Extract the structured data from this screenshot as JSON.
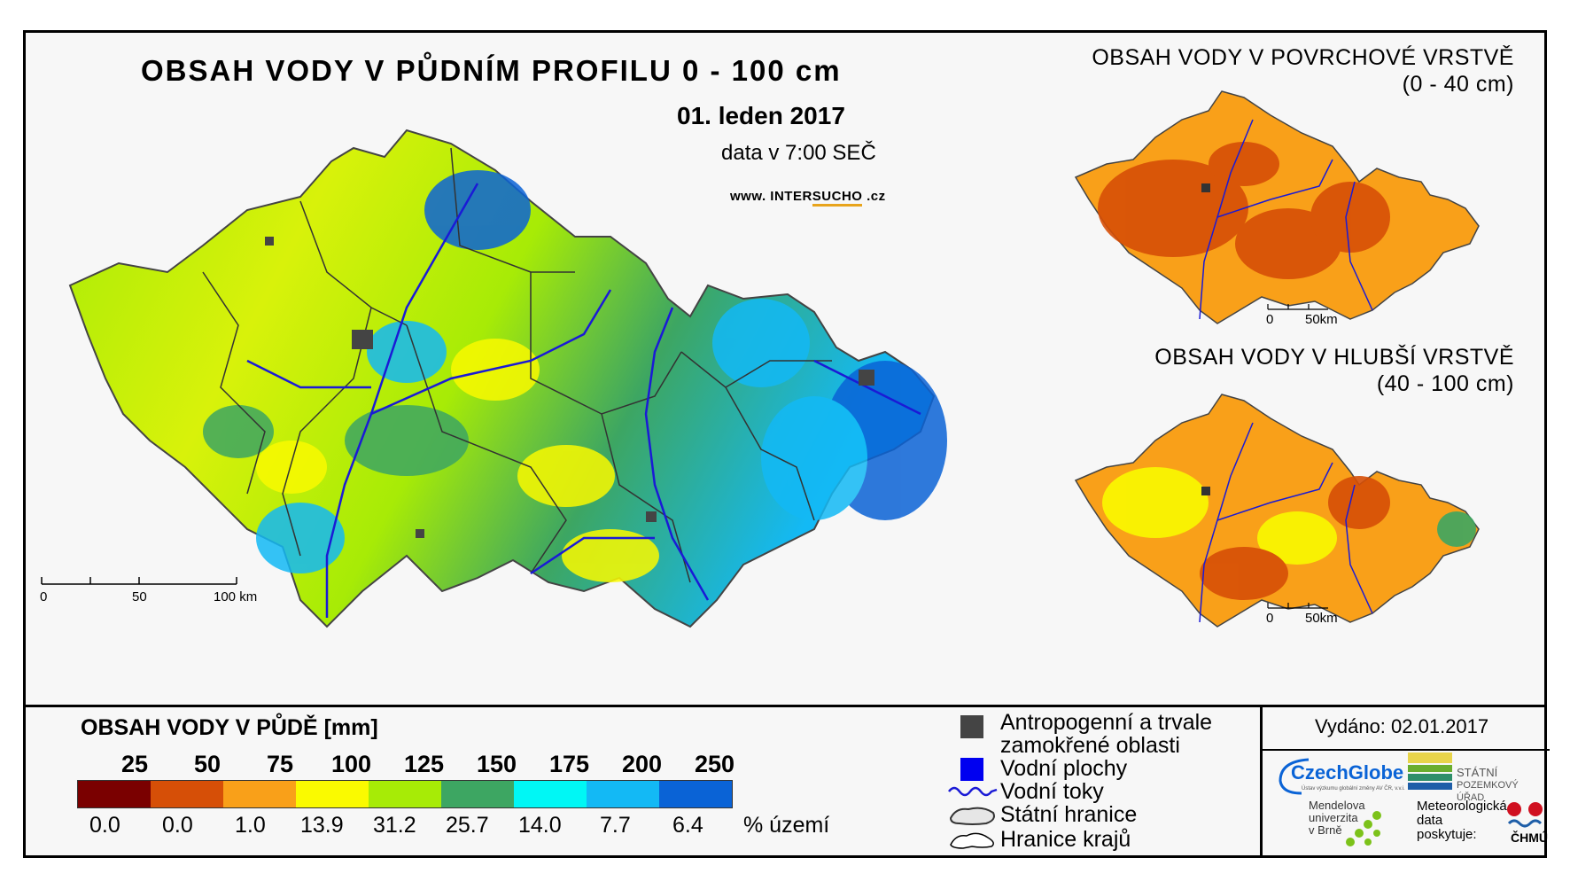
{
  "main": {
    "title": "OBSAH VODY V PŮDNÍM PROFILU 0 - 100 cm",
    "date": "01. leden 2017",
    "data_time": "data v 7:00 SEČ",
    "web_prefix": "www. INTER",
    "web_highlight": "SUCHO",
    "web_suffix": " .cz",
    "scale": [
      "0",
      "50",
      "100 km"
    ]
  },
  "inset_top": {
    "title": "OBSAH VODY V POVRCHOVÉ VRSTVĚ",
    "range": "(0 - 40 cm)",
    "scale": [
      "0",
      "50km"
    ]
  },
  "inset_bottom": {
    "title": "OBSAH VODY V HLUBŠÍ VRSTVĚ",
    "range": "(40 - 100 cm)",
    "scale": [
      "0",
      "50km"
    ]
  },
  "legend": {
    "title": "OBSAH VODY V PŮDĚ [mm]",
    "thresholds": [
      "25",
      "50",
      "75",
      "100",
      "125",
      "150",
      "175",
      "200",
      "250"
    ],
    "colors": [
      "#7a0000",
      "#d64f07",
      "#f9a019",
      "#fafa00",
      "#a7eb06",
      "#3da662",
      "#00f7f5",
      "#13b9f5",
      "#0a63d6"
    ],
    "percent_values": [
      "0.0",
      "0.0",
      "1.0",
      "13.9",
      "31.2",
      "25.7",
      "14.0",
      "7.7",
      "6.4"
    ],
    "percent_unit": "% území"
  },
  "symbols": {
    "anthropogenic_line1": "Antropogenní a trvale",
    "anthropogenic_line2": "zamokřené oblasti",
    "water_bodies": "Vodní plochy",
    "rivers": "Vodní toky",
    "state_border": "Státní hranice",
    "region_border": "Hranice krajů"
  },
  "issued": "Vydáno: 02.01.2017",
  "logos": {
    "czechglobe": "CzechGlobe",
    "czechglobe_sub": "Ústav výzkumu globální změny AV ČR, v.v.i.",
    "spu_line1": "STÁTNÍ",
    "spu_line2": "POZEMKOVÝ ÚŘAD",
    "mendel_line1": "Mendelova",
    "mendel_line2": "univerzita",
    "mendel_line3": "v Brně",
    "meteo_line1": "Meteorologická",
    "meteo_line2": "data",
    "meteo_line3": "poskytuje:",
    "chmu": "ČHMÚ"
  }
}
